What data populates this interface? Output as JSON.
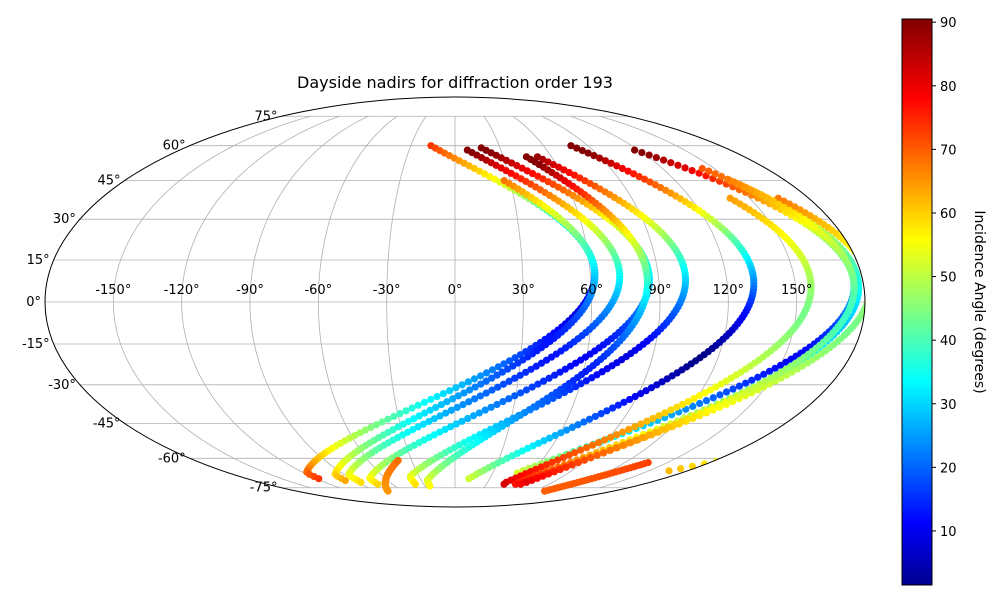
{
  "chart_data": {
    "type": "scatter",
    "projection": "mollweide",
    "title": "Dayside nadirs for diffraction order 193",
    "xlabel": "",
    "ylabel": "",
    "grid": true,
    "x_ticks": [
      "-150°",
      "-120°",
      "-90°",
      "-60°",
      "-30°",
      "0°",
      "30°",
      "60°",
      "90°",
      "120°",
      "150°"
    ],
    "y_ticks": [
      "-75°",
      "-60°",
      "-45°",
      "-30°",
      "-15°",
      "0°",
      "15°",
      "30°",
      "45°",
      "60°",
      "75°"
    ],
    "xlim": [
      -180,
      180
    ],
    "ylim": [
      -90,
      90
    ],
    "colorbar": {
      "label": "Incidence Angle (degrees)",
      "colormap": "jet",
      "vmin": 1.5,
      "vmax": 90.5,
      "ticks": [
        "10",
        "20",
        "30",
        "40",
        "50",
        "60",
        "70",
        "80",
        "90"
      ]
    },
    "tracks": [
      {
        "lon0": -118,
        "lat0": -67,
        "nadir_lat": -5,
        "amp": 180,
        "inc_nadir": 10,
        "lat_start": 60,
        "lat_end": -70
      },
      {
        "lon0": -98,
        "lat0": -68,
        "nadir_lat": -15,
        "amp": 160,
        "inc_nadir": 14,
        "lat_start": 45,
        "lat_end": -71
      },
      {
        "lon0": -87,
        "lat0": -68,
        "nadir_lat": -20,
        "amp": 160,
        "inc_nadir": 14,
        "lat_start": 58,
        "lat_end": -72
      },
      {
        "lon0": -74,
        "lat0": -70,
        "nadir_lat": -20,
        "amp": 160,
        "inc_nadir": 12,
        "lat_start": 59,
        "lat_end": -73
      },
      {
        "lon0": -38,
        "lat0": -69,
        "nadir_lat": -20,
        "amp": 140,
        "inc_nadir": 10,
        "lat_start": 55,
        "lat_end": -73
      },
      {
        "lon0": -25,
        "lat0": -71,
        "nadir_lat": -25,
        "amp": 110,
        "inc_nadir": 15,
        "lat_start": 55,
        "lat_end": -74
      },
      {
        "lon0": 12,
        "lat0": -70,
        "nadir_lat": -20,
        "amp": 120,
        "inc_nadir": 2,
        "lat_start": 60,
        "lat_end": -70
      },
      {
        "lon0": 36,
        "lat0": -72,
        "nadir_lat": -20,
        "amp": 140,
        "inc_nadir": 12,
        "lat_start": 58,
        "lat_end": -67
      },
      {
        "lon0": 47,
        "lat0": -72,
        "nadir_lat": -5,
        "amp": 110,
        "inc_nadir": 45,
        "lat_start": 38,
        "lat_end": -73
      },
      {
        "lon0": 58,
        "lat0": -72,
        "nadir_lat": -8,
        "amp": 120,
        "inc_nadir": 30,
        "lat_start": 45,
        "lat_end": -73
      },
      {
        "lon0": 63,
        "lat0": -72,
        "nadir_lat": -10,
        "amp": 120,
        "inc_nadir": 45,
        "lat_start": 38,
        "lat_end": -73
      },
      {
        "lon0": 66,
        "lat0": -72,
        "nadir_lat": -5,
        "amp": 110,
        "inc_nadir": 40,
        "lat_start": 50,
        "lat_end": -72
      },
      {
        "lon0": 150,
        "lat0": -70,
        "nadir_lat": -10,
        "amp": 200,
        "inc_nadir": 10,
        "lat_start": 58,
        "lat_end": -66
      },
      {
        "lon0": -88,
        "lat0": -82,
        "nadir_lat": -85,
        "amp": 130,
        "inc_nadir": 65,
        "lat_start": -61,
        "lat_end": -77
      },
      {
        "lon0": 90,
        "lat0": -82,
        "nadir_lat": -85,
        "amp": 130,
        "inc_nadir": 70,
        "lat_start": -62,
        "lat_end": -77
      }
    ]
  }
}
